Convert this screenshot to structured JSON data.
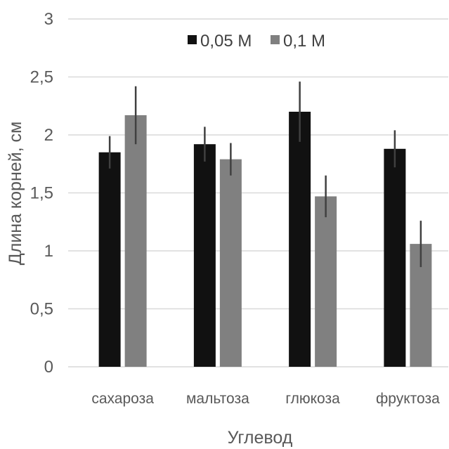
{
  "chart_data": {
    "type": "bar",
    "categories": [
      "сахароза",
      "мальтоза",
      "глюкоза",
      "фруктоза"
    ],
    "series": [
      {
        "name": "0,05 М",
        "color": "#111111",
        "values": [
          1.85,
          1.92,
          2.2,
          1.88
        ],
        "errors": [
          0.14,
          0.15,
          0.26,
          0.16
        ]
      },
      {
        "name": "0,1 М",
        "color": "#808080",
        "values": [
          2.17,
          1.79,
          1.47,
          1.06
        ],
        "errors": [
          0.25,
          0.14,
          0.18,
          0.2
        ]
      }
    ],
    "xlabel": "Углевод",
    "ylabel": "Длина корней, см",
    "ylim": [
      0,
      3
    ],
    "yticks": [
      0,
      0.5,
      1,
      1.5,
      2,
      2.5,
      3
    ],
    "ytick_labels": [
      "0",
      "0,5",
      "1",
      "1,5",
      "2",
      "2,5",
      "3"
    ],
    "grid": true,
    "legend_position": "top-right",
    "error_bar_color": "#404040",
    "grid_color": "#d9d9d9"
  }
}
